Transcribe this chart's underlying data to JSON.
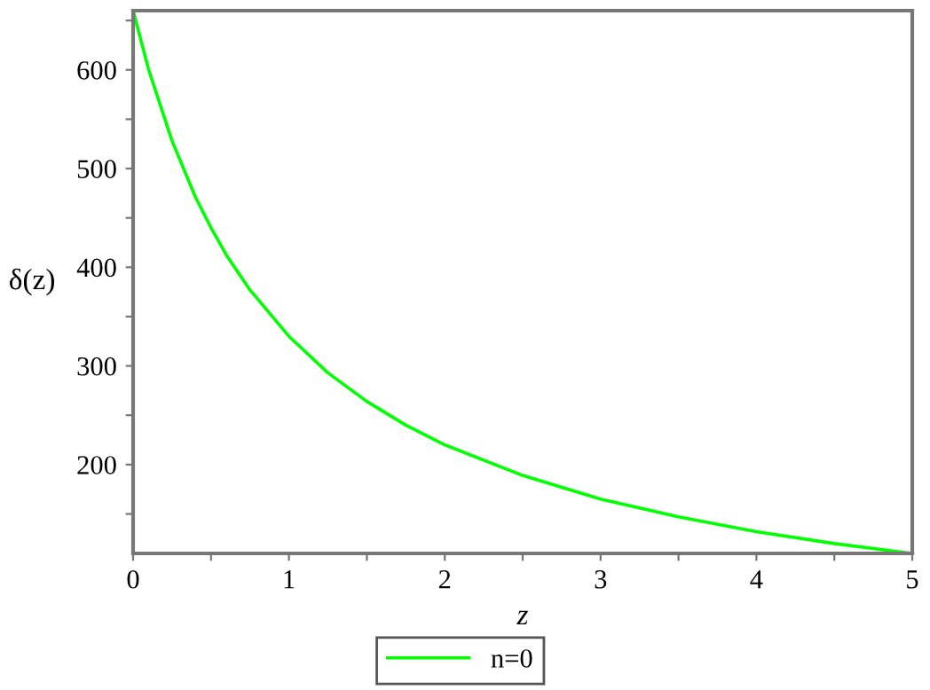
{
  "chart_data": {
    "type": "line",
    "xlabel": "z",
    "ylabel": "δ(z)",
    "x": [
      0,
      0.1,
      0.25,
      0.4,
      0.5,
      0.6,
      0.75,
      1,
      1.25,
      1.5,
      1.75,
      2,
      2.5,
      3,
      3.5,
      4,
      4.5,
      5
    ],
    "series": [
      {
        "name": "n=0",
        "color": "#00ff00",
        "values": [
          660,
          600,
          528,
          471,
          440,
          412,
          377,
          330,
          293,
          264,
          240,
          220,
          189,
          165,
          147,
          132,
          120,
          110
        ]
      }
    ],
    "xlim": [
      0,
      5
    ],
    "ylim": [
      110,
      660
    ],
    "xticks": [
      0,
      {
        "value": 0.5,
        "label": null
      },
      1,
      {
        "value": 1.5,
        "label": null
      },
      2,
      {
        "value": 2.5,
        "label": null
      },
      3,
      {
        "value": 3.5,
        "label": null
      },
      4,
      {
        "value": 4.5,
        "label": null
      },
      5
    ],
    "yticks": [
      {
        "value": 150,
        "label": null
      },
      200,
      {
        "value": 250,
        "label": null
      },
      300,
      {
        "value": 350,
        "label": null
      },
      400,
      {
        "value": 450,
        "label": null
      },
      500,
      {
        "value": 550,
        "label": null
      },
      600,
      {
        "value": 650,
        "label": null
      }
    ],
    "grid": false,
    "legend": "bottom",
    "marker": "none",
    "line_style": "solid"
  }
}
